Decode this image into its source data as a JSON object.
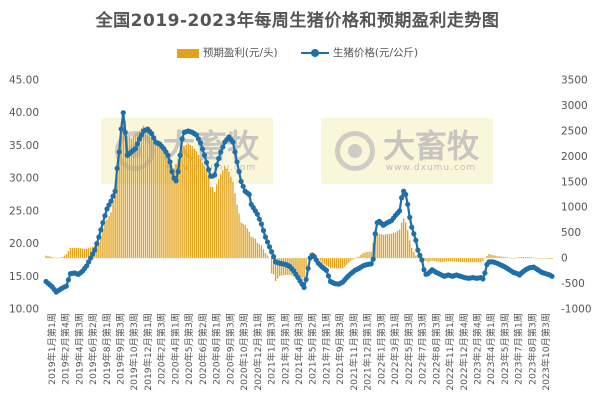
{
  "chart_data": {
    "type": "bar+line",
    "title": "全国2019-2023年每周生猪价格和预期盈利走势图",
    "series": [
      {
        "name": "预期盈利(元/头)",
        "type": "bar",
        "axis": "right",
        "color": "#E3A21A"
      },
      {
        "name": "生猪价格(元/公斤)",
        "type": "line",
        "axis": "left",
        "color": "#1F6FA8"
      }
    ],
    "left_axis": {
      "min": 10,
      "max": 45,
      "ticks": [
        "10.00",
        "15.00",
        "20.00",
        "25.00",
        "30.00",
        "35.00",
        "40.00",
        "45.00"
      ]
    },
    "right_axis": {
      "min": -1000,
      "max": 3500,
      "ticks": [
        "-1000",
        "-500",
        "0",
        "500",
        "1000",
        "1500",
        "2000",
        "2500",
        "3000",
        "3500"
      ]
    },
    "x_tick_labels": [
      "2019年1月第1周",
      "2019年2月第4周",
      "2019年4月第3周",
      "2019年6月第2周",
      "2019年8月第1周",
      "2019年9月第3周",
      "2019年10月第3周",
      "2019年12月第1周",
      "2020年2月第3周",
      "2020年4月第1周",
      "2020年5月第3周",
      "2020年6月第2周",
      "2020年8月第1周",
      "2020年9月第3周",
      "2020年10月第3周",
      "2020年12月第1周",
      "2021年1月第3周",
      "2021年3月第1周",
      "2021年4月第3周",
      "2021年5月第2周",
      "2021年7月第1周",
      "2021年9月第3周",
      "2021年11月第3周",
      "2021年12月第1周",
      "2022年1月第3周",
      "2022年3月第1周",
      "2022年5月第3周",
      "2022年7月第3周",
      "2022年8月第3周",
      "2022年11月第1周",
      "2022年12月第4周",
      "2023年2月第4周",
      "2023年4月第1周",
      "2023年5月第3周",
      "2023年7月第1周",
      "2023年8月第3周",
      "2023年10月第3周"
    ],
    "week_range": {
      "start": "2019年1月第1周",
      "end": "2023年10月第3周",
      "count": 250
    },
    "price_keypoints": [
      [
        0,
        14.2
      ],
      [
        3,
        13.4
      ],
      [
        5,
        12.6
      ],
      [
        8,
        13.2
      ],
      [
        10,
        13.5
      ],
      [
        12,
        15.4
      ],
      [
        14,
        15.5
      ],
      [
        16,
        15.3
      ],
      [
        18,
        15.8
      ],
      [
        20,
        16.6
      ],
      [
        22,
        17.8
      ],
      [
        24,
        19.0
      ],
      [
        26,
        21.0
      ],
      [
        28,
        23.2
      ],
      [
        30,
        25.3
      ],
      [
        32,
        26.5
      ],
      [
        34,
        28.0
      ],
      [
        35,
        31.5
      ],
      [
        36,
        34.0
      ],
      [
        37,
        37.5
      ],
      [
        38,
        40.0
      ],
      [
        39,
        37.0
      ],
      [
        40,
        33.5
      ],
      [
        42,
        34.0
      ],
      [
        44,
        34.5
      ],
      [
        46,
        36.0
      ],
      [
        48,
        37.2
      ],
      [
        50,
        37.5
      ],
      [
        52,
        36.8
      ],
      [
        54,
        35.5
      ],
      [
        56,
        35.2
      ],
      [
        58,
        34.5
      ],
      [
        60,
        33.5
      ],
      [
        61,
        32.5
      ],
      [
        62,
        31.0
      ],
      [
        63,
        30.0
      ],
      [
        64,
        29.6
      ],
      [
        65,
        31.0
      ],
      [
        66,
        33.5
      ],
      [
        67,
        36.0
      ],
      [
        68,
        37.0
      ],
      [
        70,
        37.2
      ],
      [
        72,
        37.0
      ],
      [
        74,
        36.6
      ],
      [
        76,
        35.4
      ],
      [
        78,
        33.5
      ],
      [
        80,
        31.3
      ],
      [
        81,
        30.3
      ],
      [
        82,
        30.3
      ],
      [
        83,
        30.5
      ],
      [
        84,
        32.0
      ],
      [
        86,
        34.0
      ],
      [
        88,
        35.5
      ],
      [
        90,
        36.3
      ],
      [
        92,
        35.5
      ],
      [
        94,
        32.5
      ],
      [
        96,
        29.5
      ],
      [
        98,
        28.0
      ],
      [
        100,
        27.5
      ],
      [
        101,
        26.0
      ],
      [
        103,
        25.0
      ],
      [
        104,
        24.5
      ],
      [
        106,
        23.0
      ],
      [
        108,
        21.0
      ],
      [
        110,
        19.5
      ],
      [
        112,
        18.0
      ],
      [
        113,
        17.2
      ],
      [
        115,
        17.0
      ],
      [
        118,
        16.8
      ],
      [
        120,
        16.5
      ],
      [
        122,
        15.8
      ],
      [
        124,
        14.8
      ],
      [
        126,
        13.8
      ],
      [
        127,
        13.3
      ],
      [
        128,
        14.5
      ],
      [
        129,
        16.2
      ],
      [
        130,
        17.8
      ],
      [
        131,
        18.2
      ],
      [
        132,
        18.0
      ],
      [
        134,
        17.0
      ],
      [
        136,
        16.4
      ],
      [
        138,
        15.9
      ],
      [
        140,
        14.2
      ],
      [
        142,
        13.9
      ],
      [
        144,
        13.8
      ],
      [
        146,
        14.1
      ],
      [
        148,
        14.8
      ],
      [
        150,
        15.4
      ],
      [
        152,
        15.9
      ],
      [
        154,
        16.2
      ],
      [
        156,
        16.6
      ],
      [
        158,
        16.8
      ],
      [
        160,
        16.9
      ],
      [
        161,
        17.6
      ],
      [
        162,
        21.5
      ],
      [
        163,
        23.2
      ],
      [
        164,
        23.4
      ],
      [
        166,
        22.8
      ],
      [
        168,
        23.2
      ],
      [
        170,
        23.5
      ],
      [
        172,
        24.3
      ],
      [
        174,
        25.0
      ],
      [
        175,
        27.0
      ],
      [
        176,
        28.0
      ],
      [
        177,
        27.5
      ],
      [
        178,
        26.0
      ],
      [
        179,
        24.0
      ],
      [
        180,
        22.5
      ],
      [
        182,
        20.5
      ],
      [
        183,
        19.0
      ],
      [
        184,
        18.2
      ],
      [
        185,
        17.5
      ],
      [
        186,
        16.0
      ],
      [
        187,
        15.3
      ],
      [
        188,
        15.4
      ],
      [
        190,
        16.0
      ],
      [
        192,
        15.6
      ],
      [
        194,
        15.3
      ],
      [
        196,
        15.0
      ],
      [
        198,
        15.2
      ],
      [
        200,
        15.0
      ],
      [
        202,
        15.2
      ],
      [
        204,
        15.0
      ],
      [
        206,
        14.8
      ],
      [
        208,
        14.7
      ],
      [
        210,
        14.8
      ],
      [
        212,
        14.7
      ],
      [
        214,
        14.8
      ],
      [
        215,
        14.6
      ],
      [
        216,
        15.5
      ],
      [
        217,
        16.8
      ],
      [
        218,
        17.2
      ],
      [
        220,
        17.2
      ],
      [
        222,
        17.0
      ],
      [
        224,
        16.7
      ],
      [
        226,
        16.4
      ],
      [
        228,
        16.0
      ],
      [
        230,
        15.6
      ],
      [
        232,
        15.4
      ],
      [
        233,
        15.2
      ],
      [
        234,
        15.5
      ],
      [
        236,
        16.0
      ],
      [
        238,
        16.3
      ],
      [
        240,
        16.4
      ],
      [
        242,
        16.0
      ],
      [
        244,
        15.6
      ],
      [
        246,
        15.4
      ],
      [
        248,
        15.2
      ],
      [
        249,
        15.0
      ]
    ],
    "profit_keypoints": [
      [
        0,
        50
      ],
      [
        5,
        0
      ],
      [
        8,
        20
      ],
      [
        10,
        80
      ],
      [
        12,
        200
      ],
      [
        16,
        200
      ],
      [
        20,
        180
      ],
      [
        24,
        240
      ],
      [
        26,
        300
      ],
      [
        28,
        560
      ],
      [
        30,
        760
      ],
      [
        32,
        900
      ],
      [
        34,
        1300
      ],
      [
        35,
        1600
      ],
      [
        36,
        2000
      ],
      [
        37,
        2400
      ],
      [
        38,
        2900
      ],
      [
        39,
        2700
      ],
      [
        40,
        2400
      ],
      [
        42,
        2350
      ],
      [
        44,
        2450
      ],
      [
        46,
        2500
      ],
      [
        48,
        2600
      ],
      [
        50,
        2500
      ],
      [
        52,
        2380
      ],
      [
        54,
        2300
      ],
      [
        56,
        2250
      ],
      [
        58,
        2150
      ],
      [
        60,
        2000
      ],
      [
        62,
        1700
      ],
      [
        64,
        1850
      ],
      [
        66,
        2050
      ],
      [
        68,
        2200
      ],
      [
        70,
        2250
      ],
      [
        72,
        2200
      ],
      [
        74,
        2100
      ],
      [
        76,
        1950
      ],
      [
        78,
        1800
      ],
      [
        80,
        1600
      ],
      [
        81,
        1400
      ],
      [
        82,
        1400
      ],
      [
        83,
        1300
      ],
      [
        84,
        1450
      ],
      [
        86,
        1650
      ],
      [
        88,
        1800
      ],
      [
        90,
        1700
      ],
      [
        92,
        1500
      ],
      [
        94,
        1050
      ],
      [
        96,
        700
      ],
      [
        98,
        650
      ],
      [
        100,
        520
      ],
      [
        101,
        420
      ],
      [
        103,
        380
      ],
      [
        104,
        300
      ],
      [
        106,
        250
      ],
      [
        108,
        100
      ],
      [
        110,
        0
      ],
      [
        111,
        -300
      ],
      [
        112,
        -320
      ],
      [
        113,
        -450
      ],
      [
        115,
        -350
      ],
      [
        118,
        -330
      ],
      [
        120,
        -330
      ],
      [
        122,
        -360
      ],
      [
        124,
        -420
      ],
      [
        126,
        -400
      ],
      [
        127,
        -380
      ],
      [
        128,
        -200
      ],
      [
        129,
        0
      ],
      [
        130,
        100
      ],
      [
        131,
        120
      ],
      [
        132,
        100
      ],
      [
        134,
        0
      ],
      [
        136,
        -100
      ],
      [
        138,
        -150
      ],
      [
        140,
        -200
      ],
      [
        142,
        -200
      ],
      [
        144,
        -200
      ],
      [
        146,
        -200
      ],
      [
        148,
        -130
      ],
      [
        150,
        -50
      ],
      [
        152,
        0
      ],
      [
        154,
        30
      ],
      [
        156,
        100
      ],
      [
        158,
        120
      ],
      [
        160,
        130
      ],
      [
        161,
        300
      ],
      [
        162,
        450
      ],
      [
        163,
        500
      ],
      [
        164,
        480
      ],
      [
        166,
        460
      ],
      [
        168,
        470
      ],
      [
        170,
        480
      ],
      [
        172,
        500
      ],
      [
        174,
        560
      ],
      [
        175,
        700
      ],
      [
        176,
        780
      ],
      [
        177,
        700
      ],
      [
        178,
        550
      ],
      [
        179,
        350
      ],
      [
        180,
        200
      ],
      [
        182,
        50
      ],
      [
        184,
        0
      ],
      [
        186,
        -30
      ],
      [
        188,
        -80
      ],
      [
        190,
        -50
      ],
      [
        194,
        -80
      ],
      [
        198,
        -60
      ],
      [
        202,
        -70
      ],
      [
        206,
        -80
      ],
      [
        210,
        -80
      ],
      [
        214,
        -80
      ],
      [
        215,
        -60
      ],
      [
        216,
        0
      ],
      [
        217,
        40
      ],
      [
        218,
        80
      ],
      [
        222,
        40
      ],
      [
        226,
        20
      ],
      [
        230,
        0
      ],
      [
        234,
        20
      ],
      [
        238,
        20
      ],
      [
        242,
        0
      ],
      [
        246,
        -10
      ],
      [
        249,
        -20
      ]
    ]
  },
  "watermarks": [
    {
      "brand": "大畜牧",
      "url": "www.dxumu.com"
    },
    {
      "brand": "大畜牧",
      "url": "www.dxumu.com"
    }
  ]
}
